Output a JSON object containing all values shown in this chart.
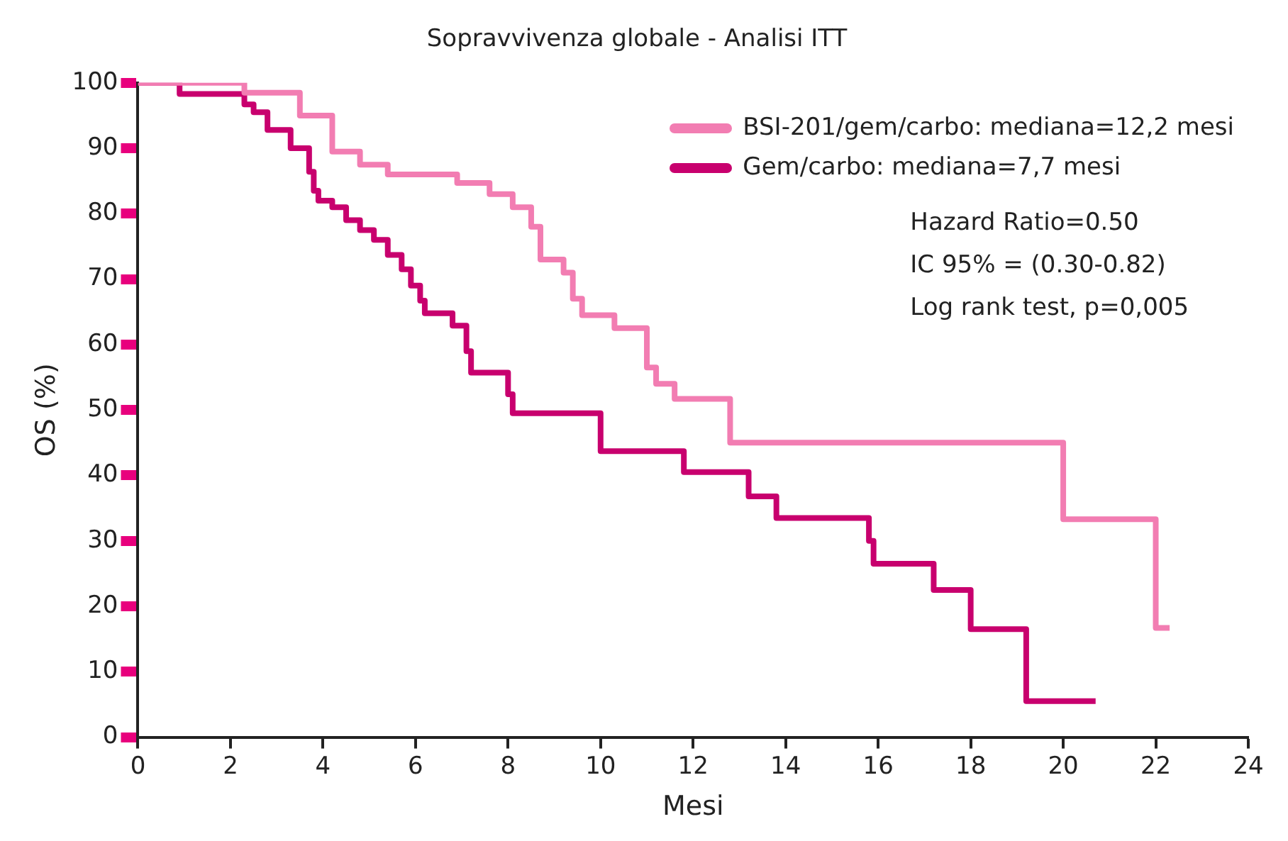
{
  "chart_data": {
    "type": "step",
    "title": "Sopravvivenza globale - Analisi ITT",
    "xlabel": "Mesi",
    "ylabel": "OS (%)",
    "xlim": [
      0,
      24
    ],
    "xticks": [
      0,
      2,
      4,
      6,
      8,
      10,
      12,
      14,
      16,
      18,
      20,
      22,
      24
    ],
    "ylim": [
      0,
      100
    ],
    "yticks": [
      0,
      10,
      20,
      30,
      40,
      50,
      60,
      70,
      80,
      90,
      100
    ],
    "grid": false,
    "legend": "top right",
    "series": [
      {
        "name": "BSI-201/gem/carbo: mediana=12,2 mesi",
        "color": "#f27db2",
        "x": [
          0,
          2.3,
          3.5,
          4.2,
          4.8,
          5.4,
          6.9,
          7.6,
          8.1,
          8.5,
          8.7,
          9.2,
          9.4,
          9.6,
          10.3,
          11.0,
          11.2,
          11.6,
          12.8,
          20.0,
          22.0,
          22.3
        ],
        "values": [
          100,
          98.5,
          95,
          89.5,
          87.5,
          86,
          84.7,
          83,
          81,
          78,
          73,
          71,
          67,
          64.5,
          62.5,
          56.5,
          54,
          51.7,
          45,
          33.3,
          16.7,
          16.7
        ]
      },
      {
        "name": "Gem/carbo: mediana=7,7 mesi",
        "color": "#c8006e",
        "x": [
          0,
          0.9,
          2.3,
          2.5,
          2.8,
          3.3,
          3.7,
          3.8,
          3.9,
          4.2,
          4.5,
          4.8,
          5.1,
          5.4,
          5.7,
          5.9,
          6.1,
          6.2,
          6.8,
          7.1,
          7.2,
          8.0,
          8.1,
          10.0,
          11.8,
          13.2,
          13.8,
          15.8,
          15.9,
          17.2,
          18.0,
          19.2,
          20.7
        ],
        "values": [
          100,
          98.3,
          96.7,
          95.5,
          92.8,
          90,
          86.4,
          83.5,
          82,
          81,
          79,
          77.5,
          76,
          73.7,
          71.5,
          69,
          66.7,
          64.8,
          62.9,
          59,
          55.7,
          52.4,
          49.5,
          43.7,
          40.5,
          36.8,
          33.5,
          30,
          26.5,
          22.5,
          16.5,
          5.5,
          5.5
        ]
      }
    ],
    "annotations": [
      "Hazard Ratio=0.50",
      "IC 95% = (0.30-0.82)",
      "Log rank test, p=0,005"
    ]
  }
}
